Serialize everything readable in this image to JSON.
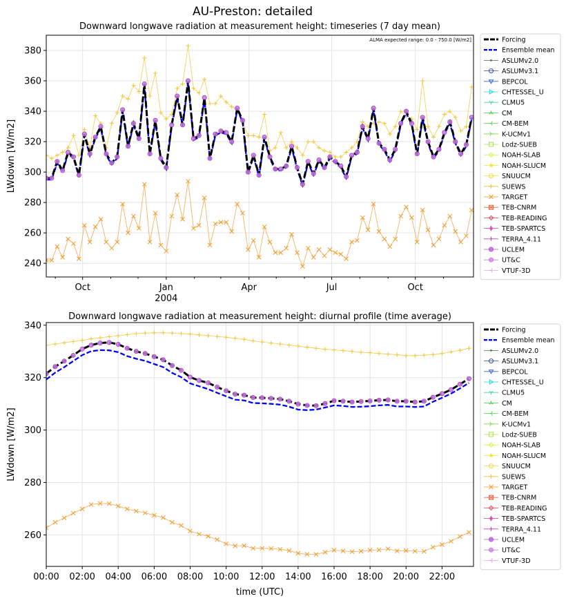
{
  "figure_title": "AU-Preston: detailed",
  "legend_entries": [
    {
      "name": "Forcing",
      "color": "#000000",
      "marker": "none",
      "dash": "dash",
      "width": 3
    },
    {
      "name": "Ensemble mean",
      "color": "#0000ff",
      "marker": "none",
      "dash": "dash",
      "width": 2.4
    },
    {
      "name": "ASLUMv2.0",
      "color": "#4d6a4d",
      "marker": "dot"
    },
    {
      "name": "ASLUMv3.1",
      "color": "#2f4fa0",
      "marker": "circle-open"
    },
    {
      "name": "BEPCOL",
      "color": "#2e63d8",
      "marker": "tri-down-open"
    },
    {
      "name": "CHTESSEL_U",
      "color": "#17d7d7",
      "marker": "tri-right-open"
    },
    {
      "name": "CLMU5",
      "color": "#3ed6a0",
      "marker": "tri-down-line"
    },
    {
      "name": "CM",
      "color": "#3bd33b",
      "marker": "tri-up-line"
    },
    {
      "name": "CM-BEM",
      "color": "#4fd34f",
      "marker": "tri-left-line"
    },
    {
      "name": "K-UCMv1",
      "color": "#7ad640",
      "marker": "tri-right-line"
    },
    {
      "name": "Lodz-SUEB",
      "color": "#a9e34b",
      "marker": "square-open"
    },
    {
      "name": "NOAH-SLAB",
      "color": "#d8ef3a",
      "marker": "diamond-open"
    },
    {
      "name": "NOAH-SLUCM",
      "color": "#f2e52a",
      "marker": "star"
    },
    {
      "name": "SNUUCM",
      "color": "#f7d73a",
      "marker": "hexagon-open"
    },
    {
      "name": "SUEWS",
      "color": "#f4c430",
      "marker": "plus"
    },
    {
      "name": "TARGET",
      "color": "#f29a2e",
      "marker": "x"
    },
    {
      "name": "TEB-CNRM",
      "color": "#f0603a",
      "marker": "square-x"
    },
    {
      "name": "TEB-READING",
      "color": "#ee3a5a",
      "marker": "diamond-open"
    },
    {
      "name": "TEB-SPARTCS",
      "color": "#e0359a",
      "marker": "thin-diamond"
    },
    {
      "name": "TERRA_4.11",
      "color": "#c63bbf",
      "marker": "vline"
    },
    {
      "name": "UCLEM",
      "color": "#b04fd6",
      "marker": "octagon"
    },
    {
      "name": "UT&C",
      "color": "#c77ae0",
      "marker": "circle-fill"
    },
    {
      "name": "VTUF-3D",
      "color": "#e39ef2",
      "marker": "tri-left-line"
    }
  ],
  "chart_data": [
    {
      "type": "line",
      "title": "Downward longwave radiation at measurement height: timeseries (7 day mean)",
      "annotation": "ALMA expected range: 0.0 - 750.0 [W/m2]",
      "xlabel": "",
      "ylabel": "LWdown [W/m2]",
      "x_range": [
        "2003-08-22",
        "2004-12-04"
      ],
      "ylim": [
        231,
        390
      ],
      "yticks": [
        240,
        260,
        280,
        300,
        320,
        340,
        360,
        380
      ],
      "xticks": [
        {
          "date": "2003-10-01",
          "label": "Oct",
          "sublabel": ""
        },
        {
          "date": "2004-01-01",
          "label": "Jan",
          "sublabel": "2004"
        },
        {
          "date": "2004-04-01",
          "label": "Apr",
          "sublabel": ""
        },
        {
          "date": "2004-07-01",
          "label": "Jul",
          "sublabel": ""
        },
        {
          "date": "2004-10-01",
          "label": "Oct",
          "sublabel": ""
        }
      ],
      "x_minor_ticks": [
        "2003-09-01",
        "2003-11-01",
        "2003-12-01",
        "2004-02-01",
        "2004-03-01",
        "2004-05-01",
        "2004-06-01",
        "2004-08-01",
        "2004-09-01",
        "2004-11-01"
      ],
      "grid": true,
      "legend": "outside-right",
      "x_dates": [
        "2003-08-22",
        "2003-08-28",
        "2003-09-03",
        "2003-09-09",
        "2003-09-15",
        "2003-09-21",
        "2003-09-27",
        "2003-10-03",
        "2003-10-09",
        "2003-10-15",
        "2003-10-21",
        "2003-10-27",
        "2003-11-02",
        "2003-11-08",
        "2003-11-14",
        "2003-11-20",
        "2003-11-26",
        "2003-12-02",
        "2003-12-08",
        "2003-12-14",
        "2003-12-20",
        "2003-12-26",
        "2004-01-01",
        "2004-01-07",
        "2004-01-13",
        "2004-01-19",
        "2004-01-25",
        "2004-01-31",
        "2004-02-06",
        "2004-02-12",
        "2004-02-18",
        "2004-02-24",
        "2004-03-01",
        "2004-03-07",
        "2004-03-13",
        "2004-03-19",
        "2004-03-25",
        "2004-03-31",
        "2004-04-06",
        "2004-04-12",
        "2004-04-18",
        "2004-04-24",
        "2004-04-30",
        "2004-05-06",
        "2004-05-12",
        "2004-05-18",
        "2004-05-24",
        "2004-05-30",
        "2004-06-05",
        "2004-06-11",
        "2004-06-17",
        "2004-06-23",
        "2004-06-29",
        "2004-07-05",
        "2004-07-11",
        "2004-07-17",
        "2004-07-23",
        "2004-07-29",
        "2004-08-04",
        "2004-08-10",
        "2004-08-16",
        "2004-08-22",
        "2004-08-28",
        "2004-09-03",
        "2004-09-09",
        "2004-09-15",
        "2004-09-21",
        "2004-09-27",
        "2004-10-03",
        "2004-10-09",
        "2004-10-15",
        "2004-10-21",
        "2004-10-27",
        "2004-11-02",
        "2004-11-08",
        "2004-11-14",
        "2004-11-20",
        "2004-11-26",
        "2004-12-02"
      ],
      "series": [
        {
          "name": "Forcing",
          "values": [
            296,
            296,
            307,
            301,
            313,
            310,
            298,
            325,
            312,
            323,
            330,
            312,
            306,
            310,
            341,
            317,
            332,
            322,
            358,
            312,
            334,
            309,
            303,
            331,
            350,
            331,
            360,
            322,
            324,
            349,
            309,
            325,
            327,
            326,
            320,
            342,
            334,
            300,
            311,
            298,
            323,
            310,
            302,
            302,
            304,
            317,
            303,
            292,
            307,
            299,
            308,
            303,
            310,
            307,
            304,
            297,
            311,
            313,
            330,
            322,
            342,
            319,
            315,
            308,
            315,
            332,
            340,
            332,
            312,
            336,
            320,
            310,
            315,
            326,
            333,
            320,
            312,
            318,
            336
          ]
        },
        {
          "name": "Ensemble mean",
          "values": [
            295,
            295,
            306,
            300,
            312,
            309,
            297,
            324,
            311,
            322,
            329,
            311,
            305,
            309,
            340,
            316,
            331,
            321,
            357,
            311,
            333,
            308,
            302,
            330,
            349,
            330,
            359,
            321,
            323,
            348,
            308,
            324,
            326,
            325,
            319,
            341,
            333,
            299,
            310,
            297,
            322,
            309,
            301,
            301,
            303,
            316,
            302,
            291,
            306,
            298,
            307,
            302,
            309,
            306,
            303,
            296,
            310,
            312,
            329,
            321,
            341,
            318,
            314,
            307,
            314,
            331,
            339,
            331,
            311,
            335,
            319,
            309,
            314,
            325,
            332,
            319,
            311,
            317,
            335
          ]
        },
        {
          "name": "SUEWS",
          "values": [
            311,
            309,
            311,
            313,
            316,
            324,
            311,
            328,
            316,
            337,
            332,
            316,
            332,
            339,
            350,
            348,
            357,
            353,
            375,
            350,
            365,
            339,
            335,
            338,
            355,
            358,
            383,
            355,
            352,
            361,
            345,
            345,
            350,
            346,
            343,
            341,
            333,
            324,
            324,
            323,
            338,
            314,
            316,
            326,
            316,
            320,
            316,
            311,
            320,
            320,
            316,
            314,
            313,
            310,
            310,
            313,
            316,
            320,
            333,
            330,
            332,
            333,
            332,
            325,
            330,
            340,
            337,
            335,
            328,
            360,
            330,
            323,
            330,
            338,
            340,
            336,
            327,
            330,
            356
          ]
        },
        {
          "name": "TARGET",
          "values": [
            242,
            242,
            251,
            244,
            256,
            253,
            243,
            265,
            254,
            264,
            269,
            254,
            250,
            254,
            279,
            260,
            271,
            263,
            292,
            254,
            273,
            252,
            248,
            271,
            285,
            269,
            294,
            263,
            265,
            283,
            252,
            266,
            267,
            267,
            261,
            279,
            273,
            249,
            255,
            244,
            264,
            254,
            247,
            247,
            250,
            259,
            247,
            238,
            250,
            244,
            249,
            245,
            249,
            247,
            246,
            243,
            254,
            255,
            270,
            262,
            279,
            261,
            256,
            251,
            256,
            271,
            277,
            270,
            254,
            275,
            262,
            252,
            256,
            265,
            271,
            261,
            254,
            258,
            275
          ]
        }
      ]
    },
    {
      "type": "line",
      "title": "Downward longwave radiation at measurement height: diurnal profile (time average)",
      "xlabel": "time (UTC)",
      "ylabel": "LWdown [W/m2]",
      "x_unit": "hour",
      "x_range": [
        0,
        23.75
      ],
      "ylim": [
        248,
        341
      ],
      "yticks": [
        260,
        280,
        300,
        320,
        340
      ],
      "xticks": [
        {
          "value": 0,
          "label": "00:00"
        },
        {
          "value": 2,
          "label": "02:00"
        },
        {
          "value": 4,
          "label": "04:00"
        },
        {
          "value": 6,
          "label": "06:00"
        },
        {
          "value": 8,
          "label": "08:00"
        },
        {
          "value": 10,
          "label": "10:00"
        },
        {
          "value": 12,
          "label": "12:00"
        },
        {
          "value": 14,
          "label": "14:00"
        },
        {
          "value": 16,
          "label": "16:00"
        },
        {
          "value": 18,
          "label": "18:00"
        },
        {
          "value": 20,
          "label": "20:00"
        },
        {
          "value": 22,
          "label": "22:00"
        }
      ],
      "grid": true,
      "legend": "outside-right",
      "x_hours": [
        0,
        0.5,
        1,
        1.5,
        2,
        2.5,
        3,
        3.5,
        4,
        4.5,
        5,
        5.5,
        6,
        6.5,
        7,
        7.5,
        8,
        8.5,
        9,
        9.5,
        10,
        10.5,
        11,
        11.5,
        12,
        12.5,
        13,
        13.5,
        14,
        14.5,
        15,
        15.5,
        16,
        16.5,
        17,
        17.5,
        18,
        18.5,
        19,
        19.5,
        20,
        20.5,
        21,
        21.5,
        22,
        22.5,
        23,
        23.5
      ],
      "series": [
        {
          "name": "Forcing",
          "values": [
            321.5,
            324.2,
            326.3,
            328.5,
            330.9,
            332.4,
            333.2,
            333.4,
            332.7,
            331.2,
            330.0,
            329.2,
            328.0,
            326.8,
            324.6,
            322.8,
            320.2,
            318.9,
            318.0,
            316.4,
            315.0,
            313.7,
            313.3,
            312.4,
            312.3,
            312.1,
            311.8,
            311.0,
            309.9,
            309.4,
            309.3,
            310.1,
            311.2,
            311.0,
            310.7,
            310.9,
            311.1,
            311.4,
            311.5,
            311.0,
            311.0,
            310.7,
            311.0,
            312.5,
            313.9,
            315.4,
            317.5,
            319.6
          ]
        },
        {
          "name": "Ensemble mean",
          "values": [
            319.3,
            321.9,
            324.0,
            326.3,
            328.6,
            330.1,
            330.5,
            330.4,
            329.7,
            328.2,
            327.2,
            326.4,
            325.2,
            324.0,
            321.8,
            320.2,
            317.8,
            316.7,
            315.6,
            314.2,
            312.9,
            311.6,
            311.3,
            310.3,
            310.2,
            310.0,
            309.7,
            308.9,
            307.8,
            307.6,
            307.8,
            308.6,
            309.4,
            309.2,
            308.8,
            308.9,
            309.1,
            309.4,
            309.6,
            309.0,
            309.0,
            308.8,
            309.0,
            310.8,
            312.3,
            313.9,
            315.9,
            318.0
          ]
        },
        {
          "name": "SUEWS",
          "values": [
            332.3,
            332.8,
            333.3,
            333.8,
            334.2,
            334.8,
            335.2,
            335.6,
            336.0,
            336.4,
            336.8,
            337.0,
            337.1,
            337.1,
            337.0,
            336.8,
            336.6,
            336.3,
            336.0,
            335.7,
            335.4,
            335.0,
            334.6,
            334.0,
            333.6,
            333.2,
            332.8,
            332.4,
            332.0,
            331.6,
            331.2,
            330.8,
            330.6,
            330.3,
            330.0,
            329.7,
            329.5,
            329.2,
            329.0,
            328.7,
            328.4,
            328.4,
            328.6,
            328.8,
            329.2,
            329.8,
            330.4,
            331.2
          ]
        },
        {
          "name": "TARGET",
          "values": [
            262.7,
            264.8,
            266.5,
            268.3,
            269.9,
            271.6,
            272.0,
            271.9,
            271.0,
            269.9,
            269.1,
            268.4,
            267.5,
            266.6,
            264.8,
            263.6,
            261.5,
            260.3,
            259.5,
            258.2,
            256.6,
            255.8,
            255.9,
            254.9,
            254.9,
            254.8,
            254.5,
            254.0,
            253.0,
            252.6,
            252.6,
            253.4,
            254.2,
            253.9,
            253.6,
            253.8,
            254.2,
            254.3,
            254.7,
            253.9,
            254.0,
            253.8,
            253.7,
            255.3,
            256.3,
            257.6,
            259.4,
            261.0
          ]
        }
      ]
    }
  ]
}
